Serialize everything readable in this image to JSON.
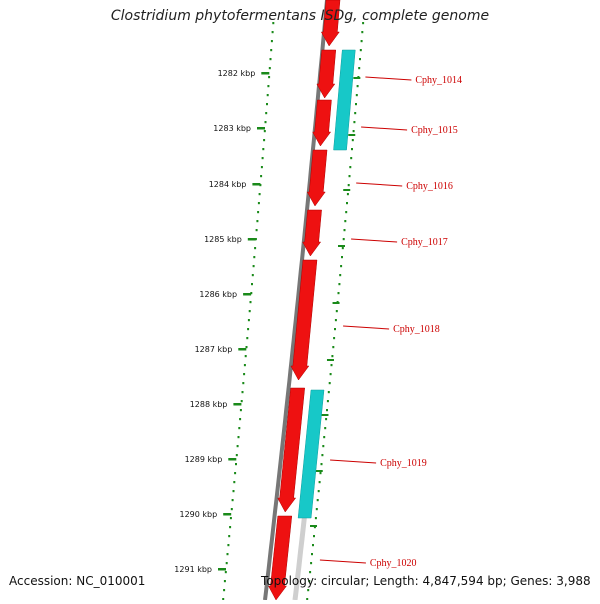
{
  "title": "Clostridium phytofermentans ISDg, complete genome",
  "accession": "Accession: NC_010001",
  "topology": "Topology: circular; Length: 4,847,594 bp; Genes: 3,988",
  "colors": {
    "forward_gene": "#ee1111",
    "reverse_gene": "#17c8c8",
    "backbone": "#777777",
    "backbone_light": "#cfcfcf",
    "ruler": "#1a8a1a",
    "label": "#cc0000"
  },
  "ruler_ticks": [
    {
      "label": "1282 kbp",
      "kbp": 1282
    },
    {
      "label": "1283 kbp",
      "kbp": 1283
    },
    {
      "label": "1284 kbp",
      "kbp": 1284
    },
    {
      "label": "1285 kbp",
      "kbp": 1285
    },
    {
      "label": "1286 kbp",
      "kbp": 1286
    },
    {
      "label": "1287 kbp",
      "kbp": 1287
    },
    {
      "label": "1288 kbp",
      "kbp": 1288
    },
    {
      "label": "1289 kbp",
      "kbp": 1289
    },
    {
      "label": "1290 kbp",
      "kbp": 1290
    },
    {
      "label": "1291 kbp",
      "kbp": 1291
    }
  ],
  "genes": [
    {
      "name": "Cphy_1014",
      "strand": "forward"
    },
    {
      "name": "Cphy_1015",
      "strand": "forward"
    },
    {
      "name": "Cphy_1016",
      "strand": "forward"
    },
    {
      "name": "Cphy_1017",
      "strand": "forward"
    },
    {
      "name": "Cphy_1018",
      "strand": "forward"
    },
    {
      "name": "Cphy_1019",
      "strand": "forward"
    },
    {
      "name": "Cphy_1020",
      "strand": "forward"
    }
  ]
}
